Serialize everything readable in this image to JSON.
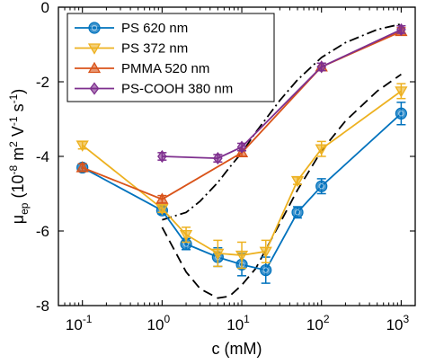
{
  "chart_data": {
    "type": "line",
    "title": "",
    "x_scale": "log",
    "xlim": [
      0.05,
      1500
    ],
    "ylim": [
      -8,
      0
    ],
    "grid": false,
    "legend_position": "top-left",
    "xlabel": {
      "main": "c (mM)"
    },
    "ylabel": {
      "mu": "μ",
      "sub": "ep",
      "open": " (10",
      "exp1": "-8",
      "m": " m",
      "exp2": "2",
      "v": " V",
      "exp3": "-1",
      "s": " s",
      "exp4": "-1",
      "close": ")"
    },
    "x_ticks": [
      {
        "value": 0.1,
        "base": "10",
        "exp": "-1"
      },
      {
        "value": 1,
        "base": "10",
        "exp": "0"
      },
      {
        "value": 10,
        "base": "10",
        "exp": "1"
      },
      {
        "value": 100,
        "base": "10",
        "exp": "2"
      },
      {
        "value": 1000,
        "base": "10",
        "exp": "3"
      }
    ],
    "y_ticks": [
      {
        "value": 0,
        "label": "0"
      },
      {
        "value": -2,
        "label": "-2"
      },
      {
        "value": -4,
        "label": "-4"
      },
      {
        "value": -6,
        "label": "-6"
      },
      {
        "value": -8,
        "label": "-8"
      }
    ],
    "series": [
      {
        "name": "PS 620 nm",
        "color": "#0072BD",
        "marker": "circle",
        "x": [
          0.1,
          1,
          2,
          5,
          10,
          20,
          50,
          100,
          1000
        ],
        "y": [
          -4.3,
          -5.45,
          -6.35,
          -6.7,
          -6.9,
          -7.05,
          -5.5,
          -4.8,
          -2.85
        ],
        "err": [
          0.1,
          0.1,
          0.15,
          0.25,
          0.3,
          0.35,
          0.15,
          0.2,
          0.3
        ]
      },
      {
        "name": "PS 372 nm",
        "color": "#EDB120",
        "marker": "triangle-down",
        "x": [
          0.1,
          1,
          2,
          5,
          10,
          20,
          50,
          100,
          1000
        ],
        "y": [
          -3.7,
          -5.4,
          -6.1,
          -6.6,
          -6.65,
          -6.55,
          -4.65,
          -3.8,
          -2.25
        ],
        "err": [
          0.1,
          0.1,
          0.2,
          0.35,
          0.35,
          0.3,
          0.1,
          0.2,
          0.2
        ]
      },
      {
        "name": "PMMA 520 nm",
        "color": "#D95319",
        "marker": "triangle-up",
        "x": [
          0.1,
          1,
          10,
          100,
          1000
        ],
        "y": [
          -4.3,
          -5.15,
          -3.9,
          -1.6,
          -0.65
        ],
        "err": [
          0.1,
          0.1,
          0.1,
          0.1,
          0.1
        ]
      },
      {
        "name": "PS-COOH 380 nm",
        "color": "#7E2F8E",
        "marker": "diamond",
        "x": [
          1,
          5,
          10,
          100,
          1000
        ],
        "y": [
          -4.0,
          -4.05,
          -3.75,
          -1.6,
          -0.6
        ],
        "err": [
          0.1,
          0.1,
          0.1,
          0.1,
          0.1
        ]
      }
    ],
    "fit_curves": [
      {
        "style": "dashdot",
        "color": "#000000",
        "x": [
          1,
          2,
          3,
          5,
          7,
          10,
          15,
          20,
          30,
          50,
          100,
          200,
          500,
          1000
        ],
        "y": [
          -5.7,
          -5.5,
          -5.2,
          -4.7,
          -4.3,
          -3.9,
          -3.35,
          -3.0,
          -2.5,
          -1.95,
          -1.35,
          -0.95,
          -0.6,
          -0.45
        ]
      },
      {
        "style": "dashed",
        "color": "#000000",
        "x": [
          1,
          1.5,
          2,
          3,
          5,
          7,
          10,
          15,
          20,
          30,
          50,
          100,
          200,
          500,
          1000
        ],
        "y": [
          -5.9,
          -6.6,
          -7.1,
          -7.55,
          -7.8,
          -7.75,
          -7.45,
          -7.0,
          -6.5,
          -5.8,
          -4.9,
          -3.85,
          -3.05,
          -2.25,
          -1.8
        ]
      }
    ]
  }
}
